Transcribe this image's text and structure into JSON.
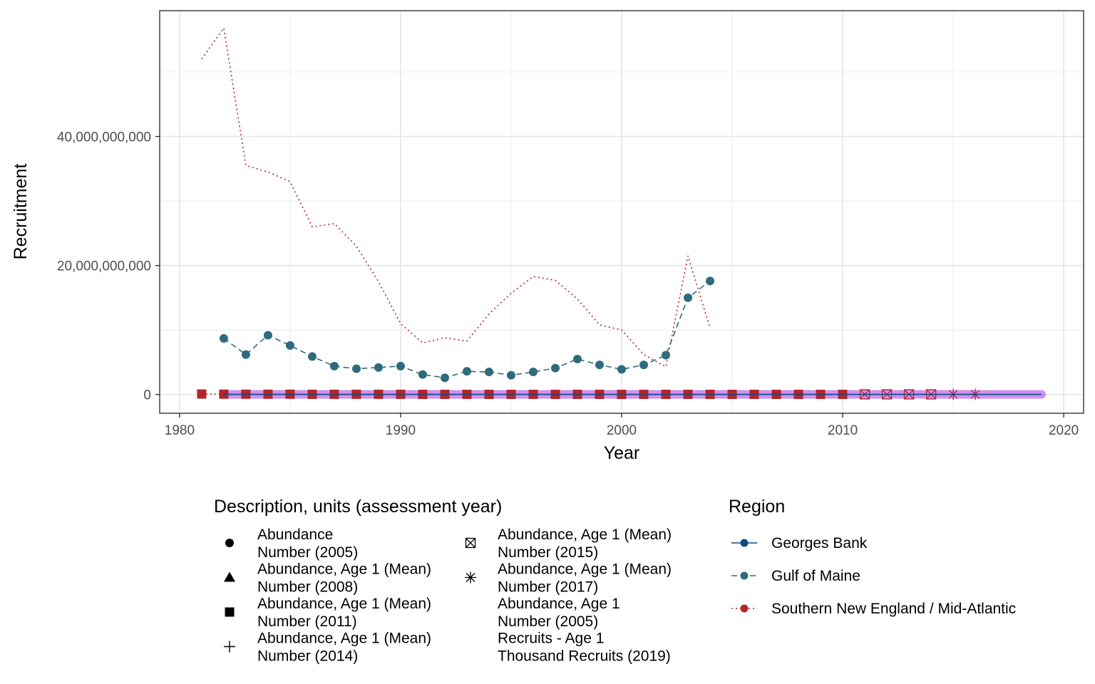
{
  "chart_data": {
    "type": "line",
    "xlabel": "Year",
    "ylabel": "Recruitment",
    "xlim": [
      1979.1,
      2020.9
    ],
    "ylim": [
      -2900000000,
      59500000000
    ],
    "x_ticks": [
      1980,
      1990,
      2000,
      2010,
      2020
    ],
    "x_tick_labels": [
      "1980",
      "1990",
      "2000",
      "2010",
      "2020"
    ],
    "y_ticks": [
      0,
      20000000000,
      40000000000
    ],
    "y_tick_labels": [
      "0",
      "20,000,000,000",
      "40,000,000,000"
    ],
    "grid": true,
    "legend_position": "bottom",
    "shape_legend": {
      "title": "Description, units (assessment year)",
      "entries": [
        {
          "shape": "circle",
          "line1": "Abundance",
          "line2": "Number (2005)"
        },
        {
          "shape": "triangle",
          "line1": "Abundance, Age 1 (Mean)",
          "line2": "Number (2008)"
        },
        {
          "shape": "square",
          "line1": "Abundance, Age 1 (Mean)",
          "line2": "Number (2011)"
        },
        {
          "shape": "plus",
          "line1": "Abundance, Age 1 (Mean)",
          "line2": "Number (2014)"
        },
        {
          "shape": "boxed-x",
          "line1": "Abundance, Age 1 (Mean)",
          "line2": "Number (2015)"
        },
        {
          "shape": "asterisk",
          "line1": "Abundance, Age 1 (Mean)",
          "line2": "Number (2017)"
        },
        {
          "shape": "none",
          "line1": "Abundance, Age 1",
          "line2": "Number (2005)"
        },
        {
          "shape": "none",
          "line1": "Recruits - Age 1",
          "line2": "Thousand Recruits (2019)"
        }
      ]
    },
    "color_legend": {
      "title": "Region",
      "entries": [
        {
          "name": "Georges Bank",
          "color": "#114a7e",
          "linetype": "solid"
        },
        {
          "name": "Gulf of Maine",
          "color": "#2f6b7c",
          "linetype": "dashed"
        },
        {
          "name": "Southern New England / Mid-Atlantic",
          "color": "#b5242b",
          "linetype": "dotted"
        }
      ]
    },
    "series": [
      {
        "name": "Southern New England / Mid-Atlantic",
        "description": "Abundance, Age 1 - Number (2005)",
        "color": "#b5242b",
        "linetype": "dotted",
        "marker": "none",
        "x": [
          1981,
          1982,
          1983,
          1984,
          1985,
          1986,
          1987,
          1988,
          1989,
          1990,
          1991,
          1992,
          1993,
          1994,
          1995,
          1996,
          1997,
          1998,
          1999,
          2000,
          2001,
          2002,
          2003,
          2004
        ],
        "y": [
          52000000000,
          56800000000,
          35500000000,
          34500000000,
          33000000000,
          26000000000,
          26500000000,
          23000000000,
          17500000000,
          11000000000,
          8000000000,
          8800000000,
          8300000000,
          12500000000,
          15700000000,
          18300000000,
          17700000000,
          14800000000,
          10800000000,
          10000000000,
          6200000000,
          4300000000,
          21500000000,
          10300000000
        ]
      },
      {
        "name": "Gulf of Maine",
        "description": "Abundance - Number (2005)",
        "color": "#2f6b7c",
        "linetype": "dashed",
        "marker": "circle",
        "x": [
          1982,
          1983,
          1984,
          1985,
          1986,
          1987,
          1988,
          1989,
          1990,
          1991,
          1992,
          1993,
          1994,
          1995,
          1996,
          1997,
          1998,
          1999,
          2000,
          2001,
          2002,
          2003,
          2004
        ],
        "y": [
          8700000000,
          6200000000,
          9200000000,
          7600000000,
          5900000000,
          4400000000,
          4000000000,
          4200000000,
          4400000000,
          3100000000,
          2600000000,
          3600000000,
          3500000000,
          3000000000,
          3500000000,
          4100000000,
          5500000000,
          4600000000,
          3900000000,
          4600000000,
          6100000000,
          15000000000,
          17600000000
        ]
      },
      {
        "name": "Southern New England / Mid-Atlantic",
        "description": "Abundance, Age 1 (Mean) - Number (2011)",
        "color": "#b5242b",
        "linetype": "dotted",
        "marker": "square",
        "x": [
          1981,
          1982,
          1983,
          1984,
          1985,
          1986,
          1987,
          1988,
          1989,
          1990,
          1991,
          1992,
          1993,
          1994,
          1995,
          1996,
          1997,
          1998,
          1999,
          2000,
          2001,
          2002,
          2003,
          2004,
          2005,
          2006,
          2007,
          2008,
          2009,
          2010
        ],
        "y": [
          80000000,
          60000000,
          50000000,
          50000000,
          50000000,
          40000000,
          40000000,
          40000000,
          40000000,
          40000000,
          30000000,
          30000000,
          30000000,
          30000000,
          30000000,
          30000000,
          30000000,
          30000000,
          30000000,
          30000000,
          30000000,
          30000000,
          30000000,
          30000000,
          30000000,
          30000000,
          30000000,
          30000000,
          30000000,
          30000000
        ]
      },
      {
        "name": "Southern New England / Mid-Atlantic",
        "description": "Abundance, Age 1 (Mean) - Number (2015)",
        "color": "#b5242b",
        "linetype": "dotted",
        "marker": "boxed-x",
        "x": [
          2011,
          2012,
          2013,
          2014
        ],
        "y": [
          30000000,
          30000000,
          30000000,
          30000000
        ]
      },
      {
        "name": "Southern New England / Mid-Atlantic",
        "description": "Abundance, Age 1 (Mean) - Number (2017)",
        "color": "#b5242b",
        "linetype": "dotted",
        "marker": "asterisk",
        "x": [
          2015,
          2016
        ],
        "y": [
          30000000,
          30000000
        ]
      },
      {
        "name": "Georges Bank",
        "description": "Recruits - Age 1 - Thousand Recruits (2019)",
        "color": "#114a7e",
        "linetype": "solid",
        "marker": "none",
        "x": [
          1982,
          1985,
          1990,
          1995,
          2000,
          2005,
          2010,
          2015,
          2019
        ],
        "y": [
          20000000,
          20000000,
          20000000,
          20000000,
          20000000,
          20000000,
          20000000,
          20000000,
          20000000
        ]
      }
    ]
  }
}
